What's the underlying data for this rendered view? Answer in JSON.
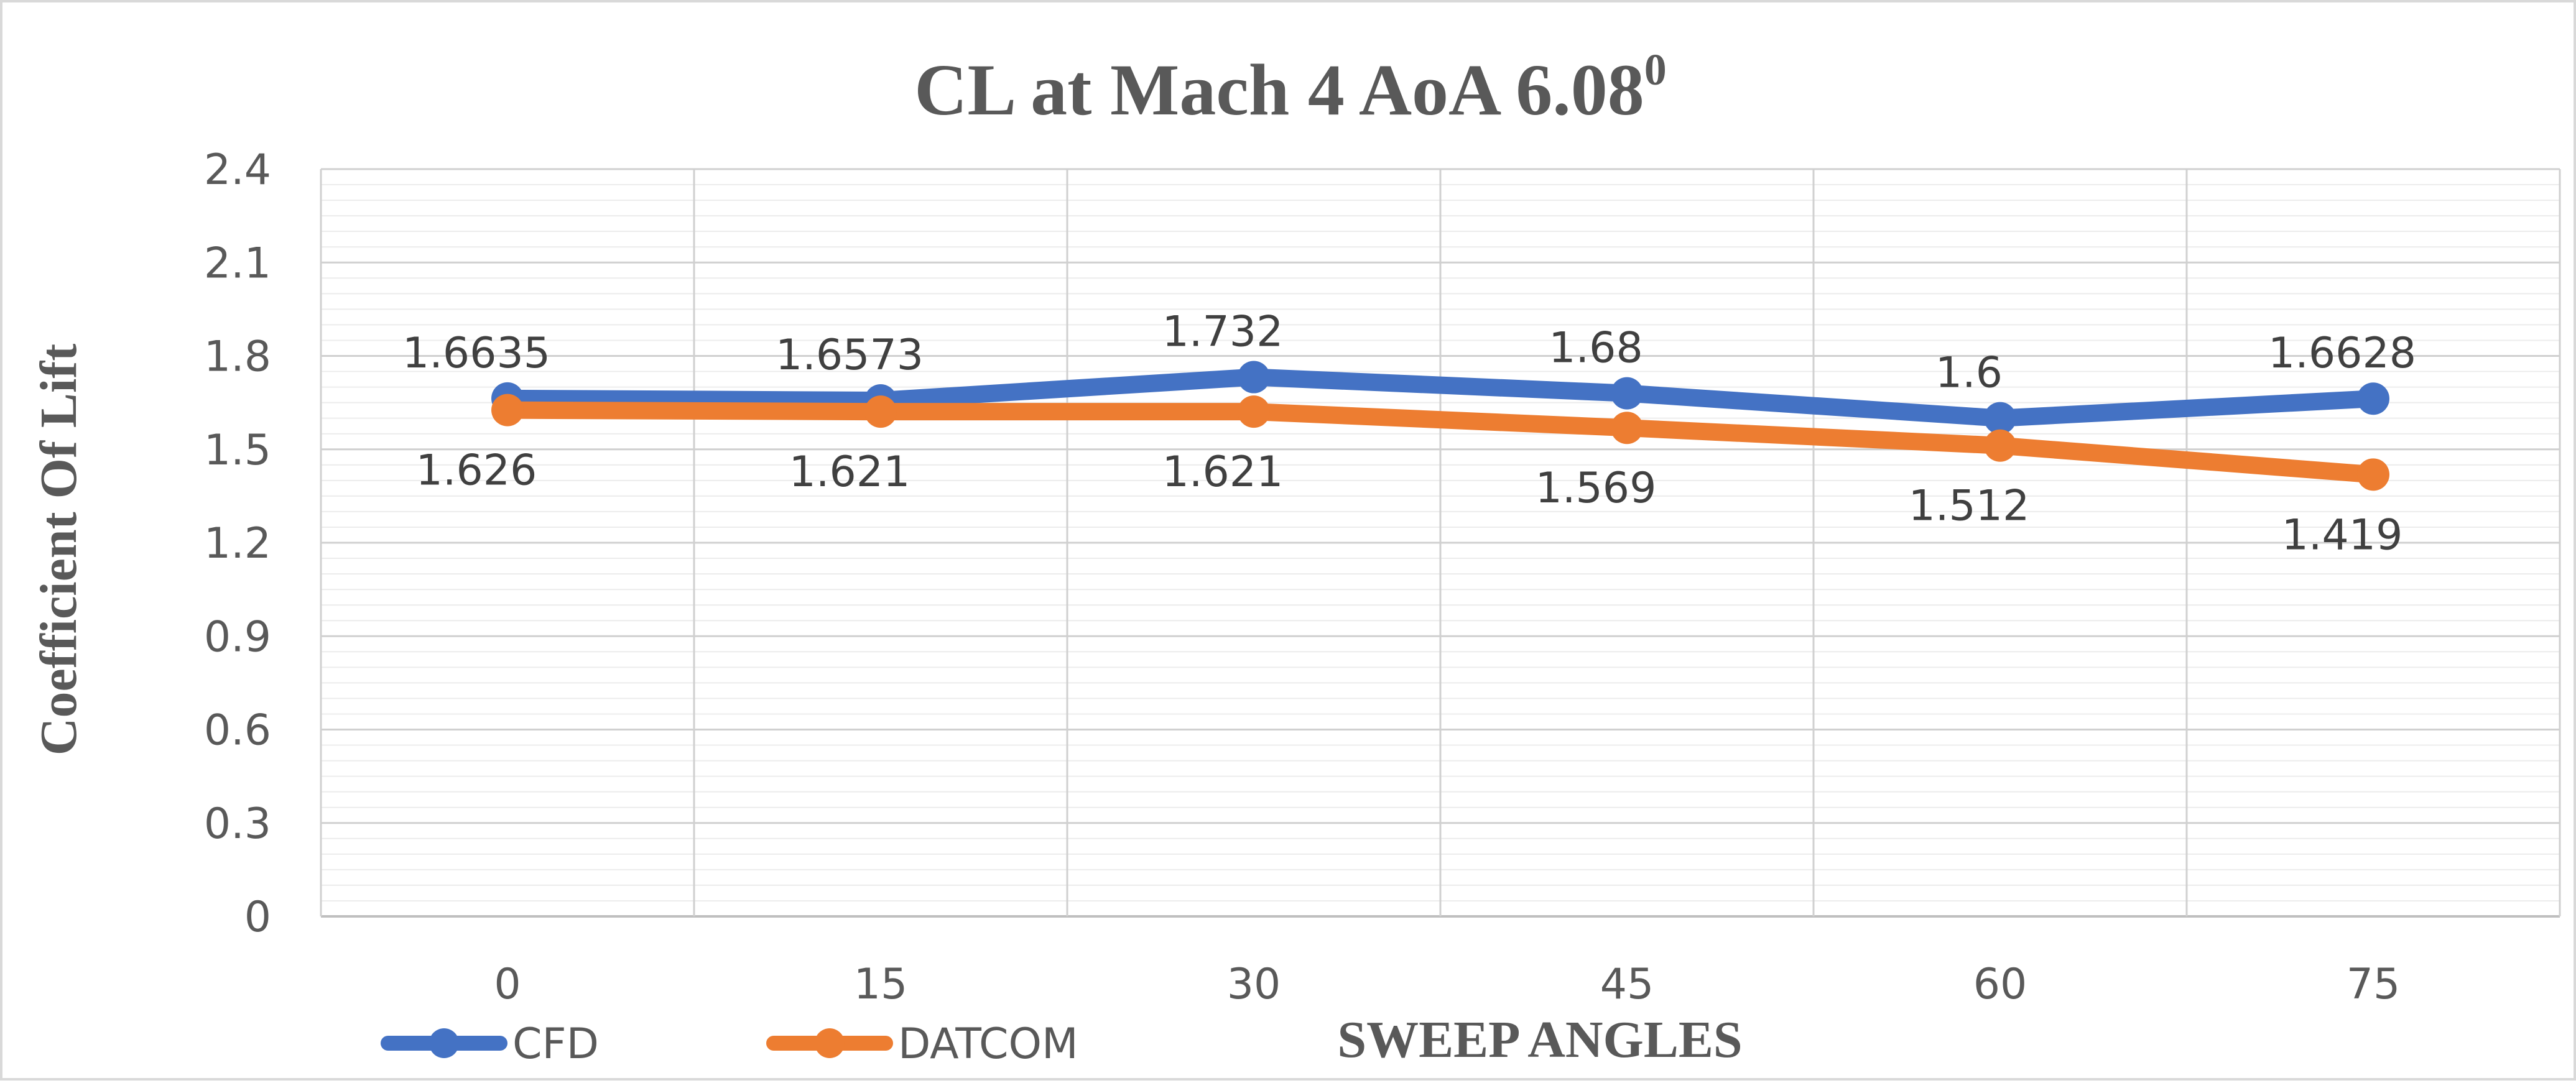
{
  "chart_data": {
    "type": "line",
    "title": "CL at Mach 4 AoA 6.08",
    "title_superscript": "0",
    "xlabel": "SWEEP ANGLES",
    "ylabel": "Coefficient Of Lift",
    "categories": [
      "0",
      "15",
      "30",
      "45",
      "60",
      "75"
    ],
    "ylim": [
      0,
      2.4
    ],
    "yticks": [
      "0",
      "0.3",
      "0.6",
      "0.9",
      "1.2",
      "1.5",
      "1.8",
      "2.1",
      "2.4"
    ],
    "grid": true,
    "legend_position": "bottom-left",
    "series": [
      {
        "name": "CFD",
        "color": "#4472c4",
        "values": [
          1.6635,
          1.6573,
          1.732,
          1.68,
          1.6,
          1.6628
        ],
        "labels": [
          "1.6635",
          "1.6573",
          "1.732",
          "1.68",
          "1.6",
          "1.6628"
        ],
        "label_position": "above"
      },
      {
        "name": "DATCOM",
        "color": "#ed7d31",
        "values": [
          1.626,
          1.621,
          1.621,
          1.569,
          1.512,
          1.419
        ],
        "labels": [
          "1.626",
          "1.621",
          "1.621",
          "1.569",
          "1.512",
          "1.419"
        ],
        "label_position": "below"
      }
    ]
  }
}
